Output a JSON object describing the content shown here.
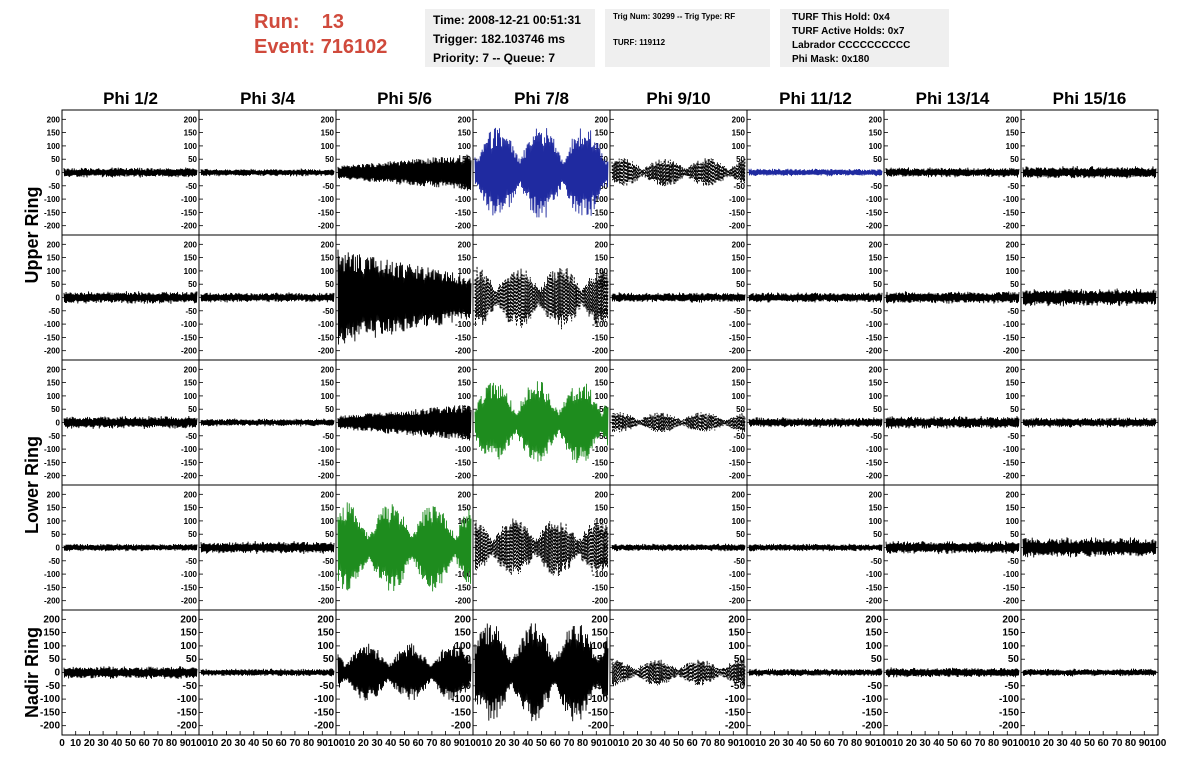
{
  "header": {
    "run_label": "Run:",
    "run_value": "13",
    "event_label": "Event:",
    "event_value": "716102"
  },
  "info_box_1": {
    "time": "Time: 2008-12-21 00:51:31",
    "trigger": "Trigger: 182.103746 ms",
    "priority": "Priority: 7 -- Queue: 7"
  },
  "info_box_2": {
    "trig": "Trig Num: 30299 -- Trig Type: RF",
    "turf": "TURF: 119112"
  },
  "info_box_3": {
    "hold": "TURF This Hold: 0x4",
    "active": "TURF Active Holds: 0x7",
    "labrador": "Labrador CCCCCCCCCC",
    "phimask": "Phi Mask: 0x180"
  },
  "colors": {
    "header_red": "#d04a3c",
    "box_bg": "#efefef",
    "trace_black": "#000000",
    "trace_blue": "#1f2aa0",
    "trace_green": "#1e8c1e"
  },
  "chart_data": {
    "type": "line",
    "columns": [
      "Phi 1/2",
      "Phi 3/4",
      "Phi 5/6",
      "Phi 7/8",
      "Phi 9/10",
      "Phi 11/12",
      "Phi 13/14",
      "Phi 15/16"
    ],
    "rows": [
      "Upper Ring",
      "Lower Ring",
      "Nadir Ring"
    ],
    "y_ticks": [
      "200",
      "150",
      "100",
      "50",
      "0",
      "-50",
      "-100",
      "-150",
      "-200"
    ],
    "x_ticks": [
      "0",
      "10",
      "20",
      "30",
      "40",
      "50",
      "60",
      "70",
      "80",
      "90",
      "100"
    ],
    "xlim": [
      0,
      100
    ],
    "ylim": [
      -220,
      220
    ],
    "panels": [
      {
        "row": 0,
        "col": 0,
        "amplitude": 20,
        "style": "solid",
        "color": "black",
        "envelope": "flat"
      },
      {
        "row": 0,
        "col": 1,
        "amplitude": 15,
        "style": "solid",
        "color": "black",
        "envelope": "flat"
      },
      {
        "row": 0,
        "col": 2,
        "amplitude": 70,
        "style": "solid",
        "color": "black",
        "envelope": "rising"
      },
      {
        "row": 0,
        "col": 3,
        "amplitude": 180,
        "style": "solid",
        "color": "blue",
        "envelope": "beat"
      },
      {
        "row": 0,
        "col": 4,
        "amplitude": 55,
        "style": "dashed",
        "color": "black",
        "envelope": "beat"
      },
      {
        "row": 0,
        "col": 5,
        "amplitude": 15,
        "style": "solid",
        "color": "blue",
        "envelope": "flat"
      },
      {
        "row": 0,
        "col": 6,
        "amplitude": 20,
        "style": "solid",
        "color": "black",
        "envelope": "flat"
      },
      {
        "row": 0,
        "col": 7,
        "amplitude": 25,
        "style": "solid",
        "color": "black",
        "envelope": "flat"
      },
      {
        "row": 1,
        "col": 0,
        "amplitude": 25,
        "style": "solid",
        "color": "black",
        "envelope": "flat"
      },
      {
        "row": 1,
        "col": 1,
        "amplitude": 20,
        "style": "solid",
        "color": "black",
        "envelope": "flat"
      },
      {
        "row": 1,
        "col": 2,
        "amplitude": 180,
        "style": "solid",
        "color": "black",
        "envelope": "decay"
      },
      {
        "row": 1,
        "col": 3,
        "amplitude": 120,
        "style": "dashed",
        "color": "black",
        "envelope": "beat"
      },
      {
        "row": 1,
        "col": 4,
        "amplitude": 20,
        "style": "solid",
        "color": "black",
        "envelope": "flat"
      },
      {
        "row": 1,
        "col": 5,
        "amplitude": 20,
        "style": "solid",
        "color": "black",
        "envelope": "flat"
      },
      {
        "row": 1,
        "col": 6,
        "amplitude": 25,
        "style": "solid",
        "color": "black",
        "envelope": "flat"
      },
      {
        "row": 1,
        "col": 7,
        "amplitude": 35,
        "style": "solid",
        "color": "black",
        "envelope": "flat"
      },
      {
        "row": 2,
        "col": 0,
        "amplitude": 25,
        "style": "solid",
        "color": "black",
        "envelope": "flat"
      },
      {
        "row": 2,
        "col": 1,
        "amplitude": 15,
        "style": "solid",
        "color": "black",
        "envelope": "flat"
      },
      {
        "row": 2,
        "col": 2,
        "amplitude": 70,
        "style": "solid",
        "color": "black",
        "envelope": "rising"
      },
      {
        "row": 2,
        "col": 3,
        "amplitude": 160,
        "style": "solid",
        "color": "green",
        "envelope": "beat"
      },
      {
        "row": 2,
        "col": 4,
        "amplitude": 40,
        "style": "dashed",
        "color": "black",
        "envelope": "beat"
      },
      {
        "row": 2,
        "col": 5,
        "amplitude": 20,
        "style": "solid",
        "color": "black",
        "envelope": "flat"
      },
      {
        "row": 2,
        "col": 6,
        "amplitude": 25,
        "style": "solid",
        "color": "black",
        "envelope": "flat"
      },
      {
        "row": 2,
        "col": 7,
        "amplitude": 20,
        "style": "solid",
        "color": "black",
        "envelope": "flat"
      },
      {
        "row": 3,
        "col": 0,
        "amplitude": 15,
        "style": "solid",
        "color": "black",
        "envelope": "flat"
      },
      {
        "row": 3,
        "col": 1,
        "amplitude": 25,
        "style": "solid",
        "color": "black",
        "envelope": "flat"
      },
      {
        "row": 3,
        "col": 2,
        "amplitude": 170,
        "style": "solid",
        "color": "green",
        "envelope": "beat"
      },
      {
        "row": 3,
        "col": 3,
        "amplitude": 110,
        "style": "dashed",
        "color": "black",
        "envelope": "beat"
      },
      {
        "row": 3,
        "col": 4,
        "amplitude": 15,
        "style": "solid",
        "color": "black",
        "envelope": "flat"
      },
      {
        "row": 3,
        "col": 5,
        "amplitude": 15,
        "style": "solid",
        "color": "black",
        "envelope": "flat"
      },
      {
        "row": 3,
        "col": 6,
        "amplitude": 25,
        "style": "solid",
        "color": "black",
        "envelope": "flat"
      },
      {
        "row": 3,
        "col": 7,
        "amplitude": 40,
        "style": "solid",
        "color": "black",
        "envelope": "flat"
      },
      {
        "row": 4,
        "col": 0,
        "amplitude": 25,
        "style": "solid",
        "color": "black",
        "envelope": "flat"
      },
      {
        "row": 4,
        "col": 1,
        "amplitude": 15,
        "style": "solid",
        "color": "black",
        "envelope": "flat"
      },
      {
        "row": 4,
        "col": 2,
        "amplitude": 110,
        "style": "solid",
        "color": "black",
        "envelope": "beat"
      },
      {
        "row": 4,
        "col": 3,
        "amplitude": 190,
        "style": "solid",
        "color": "black",
        "envelope": "beat"
      },
      {
        "row": 4,
        "col": 4,
        "amplitude": 50,
        "style": "dashed",
        "color": "black",
        "envelope": "beat"
      },
      {
        "row": 4,
        "col": 5,
        "amplitude": 15,
        "style": "solid",
        "color": "black",
        "envelope": "flat"
      },
      {
        "row": 4,
        "col": 6,
        "amplitude": 20,
        "style": "solid",
        "color": "black",
        "envelope": "flat"
      },
      {
        "row": 4,
        "col": 7,
        "amplitude": 15,
        "style": "solid",
        "color": "black",
        "envelope": "flat"
      }
    ]
  }
}
